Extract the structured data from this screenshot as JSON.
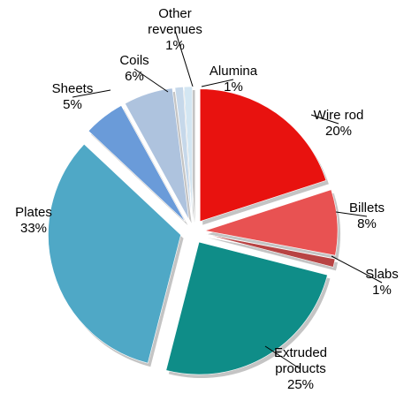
{
  "chart_data": {
    "type": "pie",
    "categories": [
      "Wire rod",
      "Billets",
      "Slabs",
      "Extruded products",
      "Plates",
      "Sheets",
      "Coils",
      "Other revenues",
      "Alumina"
    ],
    "values": [
      20,
      8,
      1,
      25,
      33,
      5,
      6,
      1,
      1
    ],
    "value_labels": [
      "20%",
      "8%",
      "1%",
      "25%",
      "33%",
      "5%",
      "6%",
      "1%",
      "1%"
    ],
    "colors": [
      "#e8120f",
      "#e85252",
      "#b84444",
      "#0f8d88",
      "#4fa8c6",
      "#6a9bd9",
      "#aec3de",
      "#c6d8ea",
      "#d3e6f2"
    ]
  }
}
